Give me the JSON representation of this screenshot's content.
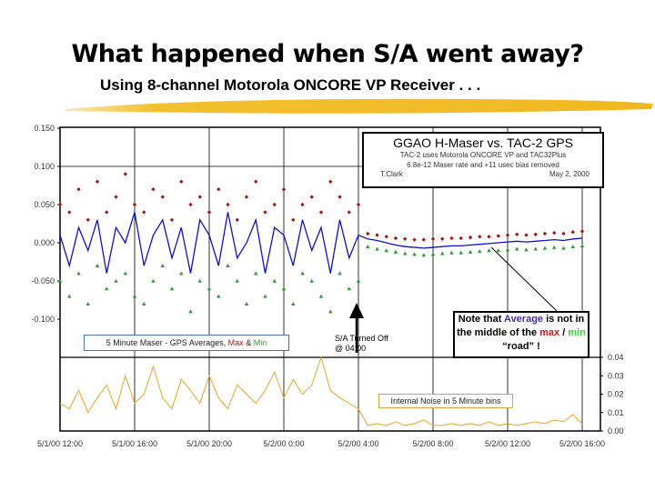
{
  "slide": {
    "title": "What happened when S/A went away?",
    "subtitle": "Using 8-channel Motorola ONCORE VP Receiver . . ."
  },
  "header_box": {
    "title": "GGAO H-Maser vs. TAC-2 GPS",
    "line1": "TAC-2 uses Motorola ONCORE VP and TAC32Plus",
    "line2": "6.8e-12 Maser rate and +11 usec bias removed",
    "author": "T.Clark",
    "date": "May 2, 2000"
  },
  "annotations": {
    "legend_top_prefix": "5 Minute Maser - GPS Averages, ",
    "legend_top_max": "Max",
    "legend_top_amp": " & ",
    "legend_top_min": "Min",
    "legend_bottom": "Internal Noise in 5 Minute bins",
    "sa_line1": "S/A Turned Off",
    "sa_line2": "@ 04:00",
    "note_a": "Note that ",
    "note_avg": "Average",
    "note_b": " is not in the middle of the ",
    "note_max": "max",
    "note_slash": " / ",
    "note_min": "min",
    "note_c": " “road” !"
  },
  "colors": {
    "average": "#1010c8",
    "max": "#a01818",
    "min": "#2a9a2a",
    "noise": "#e8a42a",
    "brush": "#f2c12e"
  },
  "chart_data": [
    {
      "type": "line",
      "panel": "top",
      "yticks": [
        "0.150",
        "0.100",
        "0.050",
        "0.000",
        "-0.050",
        "-0.100"
      ],
      "ylim": [
        -0.15,
        0.15
      ],
      "xticks": [
        "5/1/00 12:00",
        "5/1/00 16:00",
        "5/1/00 20:00",
        "5/2/00 0:00",
        "5/2/00 4:00",
        "5/2/00 8:00",
        "5/2/00 12:00",
        "5/2/00 16:00"
      ],
      "x": [
        "5/1/00 12:00",
        "5/1/00 12:30",
        "5/1/00 13:00",
        "5/1/00 13:30",
        "5/1/00 14:00",
        "5/1/00 14:30",
        "5/1/00 15:00",
        "5/1/00 15:30",
        "5/1/00 16:00",
        "5/1/00 16:30",
        "5/1/00 17:00",
        "5/1/00 17:30",
        "5/1/00 18:00",
        "5/1/00 18:30",
        "5/1/00 19:00",
        "5/1/00 19:30",
        "5/1/00 20:00",
        "5/1/00 20:30",
        "5/1/00 21:00",
        "5/1/00 21:30",
        "5/1/00 22:00",
        "5/1/00 22:30",
        "5/1/00 23:00",
        "5/1/00 23:30",
        "5/2/00 0:00",
        "5/2/00 0:30",
        "5/2/00 1:00",
        "5/2/00 1:30",
        "5/2/00 2:00",
        "5/2/00 2:30",
        "5/2/00 3:00",
        "5/2/00 3:30",
        "5/2/00 4:00",
        "5/2/00 4:30",
        "5/2/00 5:00",
        "5/2/00 5:30",
        "5/2/00 6:00",
        "5/2/00 6:30",
        "5/2/00 7:00",
        "5/2/00 7:30",
        "5/2/00 8:00",
        "5/2/00 8:30",
        "5/2/00 9:00",
        "5/2/00 9:30",
        "5/2/00 10:00",
        "5/2/00 10:30",
        "5/2/00 11:00",
        "5/2/00 11:30",
        "5/2/00 12:00",
        "5/2/00 12:30",
        "5/2/00 13:00",
        "5/2/00 13:30",
        "5/2/00 14:00",
        "5/2/00 14:30",
        "5/2/00 15:00",
        "5/2/00 15:30",
        "5/2/00 16:00"
      ],
      "series": [
        {
          "name": "Average",
          "values": [
            0.01,
            -0.03,
            0.02,
            -0.01,
            0.03,
            -0.04,
            0.02,
            0.0,
            0.04,
            -0.03,
            0.01,
            0.03,
            -0.02,
            0.02,
            -0.04,
            0.03,
            0.01,
            -0.03,
            0.04,
            -0.02,
            0.0,
            0.03,
            -0.04,
            0.02,
            0.01,
            -0.03,
            0.03,
            -0.01,
            0.02,
            -0.04,
            0.03,
            -0.02,
            0.01,
            0.005,
            0.003,
            0.0,
            -0.003,
            -0.005,
            -0.006,
            -0.007,
            -0.006,
            -0.005,
            -0.004,
            -0.004,
            -0.003,
            -0.002,
            -0.001,
            0.0,
            0.001,
            0.002,
            0.001,
            0.002,
            0.003,
            0.004,
            0.003,
            0.005,
            0.006
          ]
        },
        {
          "name": "Max",
          "values": [
            0.05,
            0.04,
            0.07,
            0.03,
            0.08,
            0.04,
            0.06,
            0.09,
            0.05,
            0.04,
            0.07,
            0.06,
            0.03,
            0.08,
            0.05,
            0.06,
            0.04,
            0.07,
            0.05,
            0.03,
            0.06,
            0.08,
            0.04,
            0.05,
            0.07,
            0.03,
            0.05,
            0.06,
            0.04,
            0.08,
            0.06,
            0.04,
            0.05,
            0.012,
            0.01,
            0.008,
            0.006,
            0.005,
            0.004,
            0.004,
            0.005,
            0.005,
            0.006,
            0.006,
            0.007,
            0.008,
            0.008,
            0.009,
            0.01,
            0.011,
            0.01,
            0.011,
            0.012,
            0.013,
            0.012,
            0.014,
            0.015
          ]
        },
        {
          "name": "Min",
          "values": [
            -0.05,
            -0.07,
            -0.04,
            -0.08,
            -0.03,
            -0.06,
            -0.05,
            -0.04,
            -0.07,
            -0.08,
            -0.05,
            -0.03,
            -0.06,
            -0.04,
            -0.09,
            -0.05,
            -0.06,
            -0.07,
            -0.03,
            -0.05,
            -0.08,
            -0.04,
            -0.07,
            -0.05,
            -0.06,
            -0.08,
            -0.04,
            -0.05,
            -0.07,
            -0.09,
            -0.04,
            -0.06,
            -0.05,
            -0.005,
            -0.008,
            -0.01,
            -0.012,
            -0.014,
            -0.015,
            -0.016,
            -0.015,
            -0.014,
            -0.013,
            -0.013,
            -0.012,
            -0.011,
            -0.01,
            -0.01,
            -0.009,
            -0.008,
            -0.009,
            -0.008,
            -0.007,
            -0.006,
            -0.007,
            -0.005,
            -0.004
          ]
        }
      ]
    },
    {
      "type": "line",
      "panel": "bottom",
      "yticks": [
        "0.04",
        "0.03",
        "0.02",
        "0.01",
        "0.00"
      ],
      "ylim": [
        0,
        0.04
      ],
      "series": [
        {
          "name": "Internal Noise in 5 Minute bins",
          "values": [
            0.015,
            0.012,
            0.022,
            0.01,
            0.018,
            0.025,
            0.012,
            0.03,
            0.015,
            0.02,
            0.035,
            0.018,
            0.012,
            0.028,
            0.022,
            0.015,
            0.03,
            0.018,
            0.012,
            0.025,
            0.02,
            0.015,
            0.022,
            0.032,
            0.018,
            0.028,
            0.02,
            0.025,
            0.04,
            0.022,
            0.018,
            0.015,
            0.012,
            0.003,
            0.004,
            0.003,
            0.005,
            0.003,
            0.004,
            0.006,
            0.003,
            0.003,
            0.004,
            0.003,
            0.004,
            0.003,
            0.005,
            0.003,
            0.004,
            0.003,
            0.004,
            0.005,
            0.004,
            0.006,
            0.005,
            0.009,
            0.004
          ]
        }
      ]
    }
  ]
}
